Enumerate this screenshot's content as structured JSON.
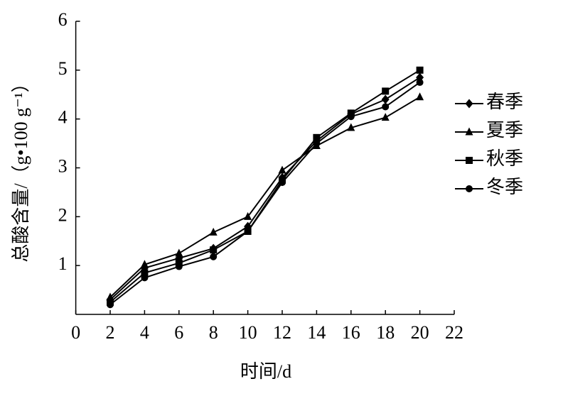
{
  "chart_data": {
    "type": "line",
    "x_label": "时间/d",
    "y_label": "总酸含量/（g•100 g⁻¹）",
    "x": [
      2,
      4,
      6,
      8,
      10,
      12,
      14,
      16,
      18,
      20
    ],
    "series": [
      {
        "name": "春季",
        "color": "#000000",
        "marker": "diamond",
        "values": [
          0.3,
          0.95,
          1.15,
          1.35,
          1.8,
          2.8,
          3.55,
          4.1,
          4.4,
          4.85
        ]
      },
      {
        "name": "夏季",
        "color": "#000000",
        "marker": "triangle",
        "values": [
          0.35,
          1.02,
          1.25,
          1.68,
          2.0,
          2.95,
          3.45,
          3.82,
          4.03,
          4.45
        ]
      },
      {
        "name": "秋季",
        "color": "#000000",
        "marker": "square",
        "values": [
          0.25,
          0.85,
          1.05,
          1.32,
          1.7,
          2.75,
          3.62,
          4.12,
          4.57,
          5.0
        ]
      },
      {
        "name": "冬季",
        "color": "#000000",
        "marker": "circle",
        "values": [
          0.2,
          0.75,
          0.98,
          1.18,
          1.7,
          2.7,
          3.5,
          4.05,
          4.25,
          4.75
        ]
      }
    ],
    "xlim": [
      0,
      22
    ],
    "xticks": [
      0,
      2,
      4,
      6,
      8,
      10,
      12,
      14,
      16,
      18,
      20,
      22
    ],
    "ylim": [
      0,
      6
    ],
    "yticks": [
      1,
      2,
      3,
      4,
      5,
      6
    ],
    "legend": "right",
    "grid": false
  }
}
